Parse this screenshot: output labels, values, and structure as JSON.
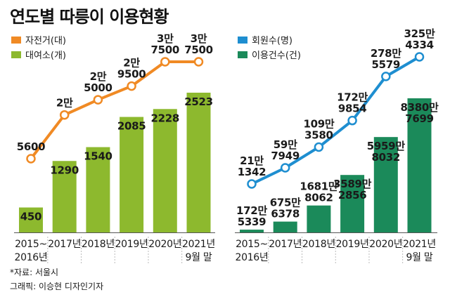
{
  "title": "연도별 따릉이 이용현황",
  "source": "*자료: 서울시",
  "credit": "그래픽: 이승현 디자인기자",
  "colors": {
    "orange": "#F08A24",
    "lime": "#8DB92E",
    "blue": "#1E8ED0",
    "green": "#1B8A5A",
    "bar_label_dark": "#1a1a1a"
  },
  "chart_data": [
    {
      "type": "bar+line",
      "categories": [
        [
          "2015~",
          "2016년"
        ],
        [
          "2017년"
        ],
        [
          "2018년"
        ],
        [
          "2019년"
        ],
        [
          "2020년"
        ],
        [
          "2021년",
          "9월 말"
        ]
      ],
      "series": [
        {
          "name": "자전거(대)",
          "type": "line",
          "color": "#F08A24",
          "values": [
            5600,
            20000,
            25000,
            29500,
            37500,
            37500
          ],
          "labels": [
            [
              "5600"
            ],
            [
              "2만"
            ],
            [
              "2만",
              "5000"
            ],
            [
              "2만",
              "9500"
            ],
            [
              "3만",
              "7500"
            ],
            [
              "3만",
              "7500"
            ]
          ]
        },
        {
          "name": "대여소(개)",
          "type": "bar",
          "color": "#8DB92E",
          "values": [
            450,
            1290,
            1540,
            2085,
            2228,
            2523
          ],
          "labels": [
            [
              "450"
            ],
            [
              "1290"
            ],
            [
              "1540"
            ],
            [
              "2085"
            ],
            [
              "2228"
            ],
            [
              "2523"
            ]
          ]
        }
      ]
    },
    {
      "type": "bar+line",
      "categories": [
        [
          "2015~",
          "2016년"
        ],
        [
          "2017년"
        ],
        [
          "2018년"
        ],
        [
          "2019년"
        ],
        [
          "2020년"
        ],
        [
          "2021년",
          "9월 말"
        ]
      ],
      "series": [
        {
          "name": "회원수(명)",
          "type": "line",
          "color": "#1E8ED0",
          "values": [
            211342,
            597949,
            1093580,
            1729854,
            2785579,
            3254334
          ],
          "labels": [
            [
              "21만",
              "1342"
            ],
            [
              "59만",
              "7949"
            ],
            [
              "109만",
              "3580"
            ],
            [
              "172만",
              "9854"
            ],
            [
              "278만",
              "5579"
            ],
            [
              "325만",
              "4334"
            ]
          ]
        },
        {
          "name": "이용건수(건)",
          "type": "bar",
          "color": "#1B8A5A",
          "values": [
            1725339,
            6756378,
            16818062,
            35892856,
            59598032,
            83807699
          ],
          "labels": [
            [
              "172만",
              "5339"
            ],
            [
              "675만",
              "6378"
            ],
            [
              "1681만",
              "8062"
            ],
            [
              "3589만",
              "2856"
            ],
            [
              "5959만",
              "8032"
            ],
            [
              "8380만",
              "7699"
            ]
          ]
        }
      ]
    }
  ]
}
